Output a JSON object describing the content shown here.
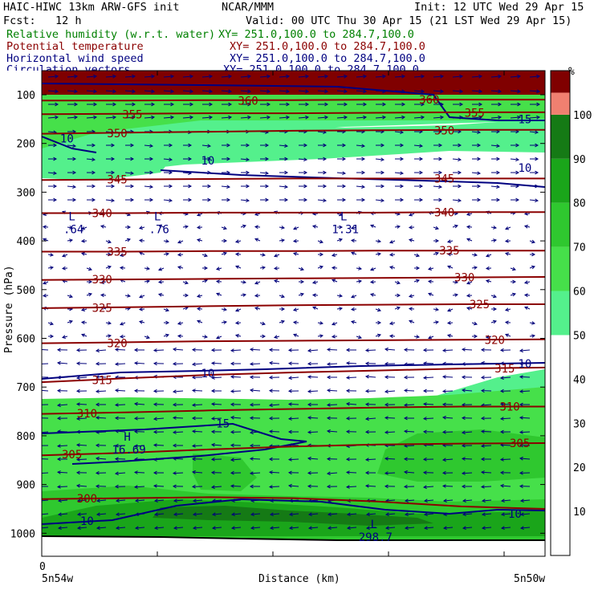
{
  "header": {
    "model": "HAIC-HIWC 13km ARW-GFS init",
    "org": "NCAR/MMM",
    "init": "Init: 12 UTC Wed 29 Apr 15",
    "fcst": "Fcst:   12 h",
    "valid": "Valid: 00 UTC Thu 30 Apr 15 (21 LST Wed 29 Apr 15)",
    "fields": [
      {
        "name": "Relative humidity (w.r.t. water)",
        "xy": "XY= 251.0,100.0 to 284.7,100.0",
        "color": "#008000"
      },
      {
        "name": "Potential temperature",
        "xy": "XY= 251.0,100.0 to 284.7,100.0",
        "color": "#8b0000"
      },
      {
        "name": "Horizontal wind speed",
        "xy": "XY= 251.0,100.0 to 284.7,100.0",
        "color": "#000080"
      },
      {
        "name": "Circulation vectors",
        "xy": "XY= 251.0,100.0 to 284.7,100.0",
        "color": "#000080"
      }
    ]
  },
  "chart_data": {
    "type": "heatmap",
    "ylabel": "Pressure (hPa)",
    "xlabel": "Distance (km)",
    "yticks": [
      100,
      200,
      300,
      400,
      500,
      600,
      700,
      800,
      900,
      1000
    ],
    "ylim": [
      1050,
      65
    ],
    "x_start_label": "0",
    "x_left_label": "5n54w",
    "x_right_label": "5n50w",
    "xlim": [
      0,
      1
    ],
    "colorbar": {
      "unit": "%",
      "levels": [
        10,
        20,
        30,
        40,
        50,
        60,
        70,
        80,
        90,
        100
      ],
      "fills": [
        {
          "from": 0,
          "to": 50,
          "color": "#ffffff"
        },
        {
          "from": 50,
          "to": 60,
          "color": "#54f08c"
        },
        {
          "from": 60,
          "to": 70,
          "color": "#46e04a"
        },
        {
          "from": 70,
          "to": 80,
          "color": "#2fc82f"
        },
        {
          "from": 80,
          "to": 90,
          "color": "#1aa51a"
        },
        {
          "from": 90,
          "to": 100,
          "color": "#157a15"
        },
        {
          "from": 100,
          "to": 105,
          "color": "#f08070"
        },
        {
          "from": 105,
          "to": 110,
          "color": "#800000"
        }
      ]
    },
    "theta_contours": [
      {
        "value": 300,
        "p": [
          930,
          928,
          926,
          928,
          935,
          945,
          950
        ]
      },
      {
        "value": 305,
        "p": [
          840,
          835,
          828,
          822,
          818,
          816,
          815
        ]
      },
      {
        "value": 310,
        "p": [
          755,
          752,
          748,
          745,
          742,
          740,
          740
        ]
      },
      {
        "value": 315,
        "p": [
          690,
          682,
          675,
          670,
          666,
          662,
          660
        ]
      },
      {
        "value": 320,
        "p": [
          610,
          608,
          606,
          605,
          604,
          603,
          602
        ]
      },
      {
        "value": 325,
        "p": [
          538,
          536,
          534,
          532,
          531,
          530,
          530
        ]
      },
      {
        "value": 330,
        "p": [
          480,
          479,
          478,
          477,
          476,
          475,
          474
        ]
      },
      {
        "value": 335,
        "p": [
          422,
          422,
          421,
          421,
          420,
          420,
          420
        ]
      },
      {
        "value": 340,
        "p": [
          343,
          343,
          342,
          342,
          342,
          341,
          341
        ]
      },
      {
        "value": 345,
        "p": [
          275,
          274,
          273,
          272,
          272,
          272,
          272
        ]
      },
      {
        "value": 350,
        "p": [
          180,
          178,
          176,
          174,
          173,
          172,
          172
        ]
      },
      {
        "value": 355,
        "p": [
          140,
          139,
          138,
          138,
          137,
          136,
          136
        ]
      },
      {
        "value": 360,
        "p": [
          112,
          112,
          111,
          111,
          110,
          110,
          110
        ]
      }
    ],
    "contour_labels": [
      {
        "text": "300",
        "x": 0.09,
        "p": 929,
        "color": "#8b0000"
      },
      {
        "text": "305",
        "x": 0.06,
        "p": 838,
        "color": "#8b0000"
      },
      {
        "text": "305",
        "x": 0.95,
        "p": 815,
        "color": "#8b0000"
      },
      {
        "text": "310",
        "x": 0.09,
        "p": 754,
        "color": "#8b0000"
      },
      {
        "text": "310",
        "x": 0.93,
        "p": 740,
        "color": "#8b0000"
      },
      {
        "text": "315",
        "x": 0.12,
        "p": 686,
        "color": "#8b0000"
      },
      {
        "text": "315",
        "x": 0.92,
        "p": 662,
        "color": "#8b0000"
      },
      {
        "text": "320",
        "x": 0.15,
        "p": 610,
        "color": "#8b0000"
      },
      {
        "text": "320",
        "x": 0.9,
        "p": 603,
        "color": "#8b0000"
      },
      {
        "text": "325",
        "x": 0.12,
        "p": 537,
        "color": "#8b0000"
      },
      {
        "text": "325",
        "x": 0.87,
        "p": 530,
        "color": "#8b0000"
      },
      {
        "text": "330",
        "x": 0.12,
        "p": 479,
        "color": "#8b0000"
      },
      {
        "text": "330",
        "x": 0.84,
        "p": 475,
        "color": "#8b0000"
      },
      {
        "text": "335",
        "x": 0.15,
        "p": 422,
        "color": "#8b0000"
      },
      {
        "text": "335",
        "x": 0.81,
        "p": 420,
        "color": "#8b0000"
      },
      {
        "text": "340",
        "x": 0.12,
        "p": 343,
        "color": "#8b0000"
      },
      {
        "text": "340",
        "x": 0.8,
        "p": 341,
        "color": "#8b0000"
      },
      {
        "text": "345",
        "x": 0.15,
        "p": 274,
        "color": "#8b0000"
      },
      {
        "text": "345",
        "x": 0.8,
        "p": 272,
        "color": "#8b0000"
      },
      {
        "text": "350",
        "x": 0.15,
        "p": 179,
        "color": "#8b0000"
      },
      {
        "text": "350",
        "x": 0.8,
        "p": 173,
        "color": "#8b0000"
      },
      {
        "text": "355",
        "x": 0.18,
        "p": 140,
        "color": "#8b0000"
      },
      {
        "text": "355",
        "x": 0.86,
        "p": 137,
        "color": "#8b0000"
      },
      {
        "text": "360",
        "x": 0.41,
        "p": 112,
        "color": "#8b0000"
      },
      {
        "text": "360",
        "x": 0.77,
        "p": 110,
        "color": "#8b0000"
      },
      {
        "text": "10",
        "x": 0.05,
        "p": 190,
        "color": "#000080"
      },
      {
        "text": "10",
        "x": 0.33,
        "p": 235,
        "color": "#000080"
      },
      {
        "text": "10",
        "x": 0.96,
        "p": 250,
        "color": "#000080"
      },
      {
        "text": "15",
        "x": 0.96,
        "p": 150,
        "color": "#000080"
      },
      {
        "text": "10",
        "x": 0.33,
        "p": 672,
        "color": "#000080"
      },
      {
        "text": "10",
        "x": 0.96,
        "p": 652,
        "color": "#000080"
      },
      {
        "text": "15",
        "x": 0.36,
        "p": 775,
        "color": "#000080"
      },
      {
        "text": "10",
        "x": 0.09,
        "p": 975,
        "color": "#000080"
      },
      {
        "text": "10",
        "x": 0.94,
        "p": 960,
        "color": "#000080"
      }
    ],
    "extrema": [
      {
        "kind": "L",
        "value": ".64",
        "x": 0.06,
        "p": 358
      },
      {
        "kind": "L",
        "value": ".76",
        "x": 0.23,
        "p": 358
      },
      {
        "kind": "L",
        "value": "1.31",
        "x": 0.6,
        "p": 358
      },
      {
        "kind": "H",
        "value": "16.69",
        "x": 0.17,
        "p": 810
      },
      {
        "kind": "L",
        "value": "298.7",
        "x": 0.66,
        "p": 990
      }
    ]
  }
}
